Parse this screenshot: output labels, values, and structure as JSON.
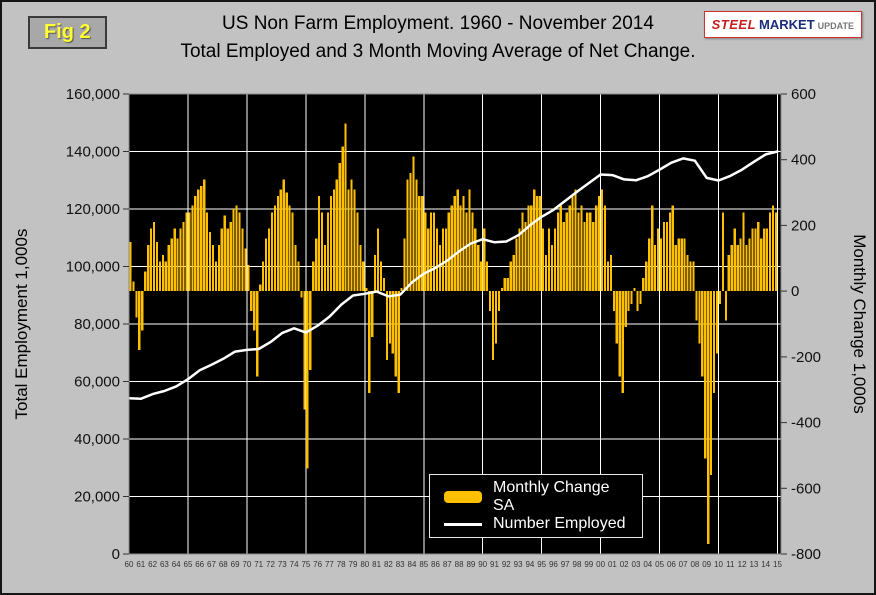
{
  "figure": {
    "tag": "Fig 2"
  },
  "logo": {
    "steel": "STEEL",
    "market": "MARKET",
    "update": "UPDATE"
  },
  "title": {
    "line1": "US Non Farm Employment. 1960 - November 2014",
    "line2": "Total Employed and 3 Month Moving Average of Net Change."
  },
  "chart_data": {
    "type": "combo-bar-line",
    "title": "US Non Farm Employment. 1960 - November 2014",
    "subtitle": "Total Employed and 3 Month Moving Average of Net Change.",
    "plot_bg": "#000000",
    "grid_color": "#ffffff",
    "legend_position": "inside-bottom-center",
    "left_axis": {
      "label": "Total Employment 1,000s",
      "min": 0,
      "max": 160000,
      "step": 20000,
      "ticks": [
        "160,000",
        "140,000",
        "120,000",
        "100,000",
        "80,000",
        "60,000",
        "40,000",
        "20,000",
        "0"
      ]
    },
    "right_axis": {
      "label": "Monthly Change 1,000s",
      "min": -800,
      "max": 600,
      "step": 200,
      "ticks": [
        "600",
        "400",
        "200",
        "0",
        "-200",
        "-400",
        "-600",
        "-800"
      ]
    },
    "x_axis": {
      "start_year": 1960,
      "end_year": 2015,
      "labels": [
        "60",
        "61",
        "62",
        "63",
        "64",
        "65",
        "66",
        "67",
        "68",
        "69",
        "70",
        "71",
        "72",
        "73",
        "74",
        "75",
        "76",
        "77",
        "78",
        "79",
        "80",
        "81",
        "82",
        "83",
        "84",
        "85",
        "86",
        "87",
        "88",
        "89",
        "90",
        "91",
        "92",
        "93",
        "94",
        "95",
        "96",
        "97",
        "98",
        "99",
        "00",
        "01",
        "02",
        "03",
        "04",
        "05",
        "06",
        "07",
        "08",
        "09",
        "10",
        "11",
        "12",
        "13",
        "14",
        "15"
      ]
    },
    "legend": {
      "bar_label": "Monthly Change SA",
      "line_label": "Number Employed"
    },
    "series": [
      {
        "name": "Monthly Change SA",
        "type": "bar",
        "axis": "right",
        "color": "#ffc000",
        "start_year": 1960,
        "points_per_year": 4,
        "values": [
          150,
          30,
          -80,
          -180,
          -120,
          60,
          140,
          190,
          210,
          150,
          90,
          110,
          90,
          140,
          160,
          190,
          160,
          190,
          210,
          240,
          240,
          260,
          290,
          310,
          320,
          340,
          240,
          180,
          140,
          90,
          140,
          190,
          230,
          190,
          210,
          250,
          260,
          240,
          190,
          130,
          80,
          -60,
          -120,
          -260,
          20,
          90,
          160,
          190,
          240,
          260,
          290,
          310,
          340,
          300,
          260,
          240,
          140,
          90,
          -20,
          -360,
          -540,
          -240,
          90,
          160,
          290,
          240,
          140,
          240,
          290,
          310,
          340,
          390,
          440,
          510,
          310,
          340,
          310,
          240,
          140,
          90,
          10,
          -310,
          -140,
          110,
          190,
          90,
          40,
          -210,
          -160,
          -190,
          -260,
          -310,
          10,
          160,
          340,
          360,
          410,
          340,
          290,
          290,
          240,
          190,
          240,
          240,
          190,
          140,
          190,
          190,
          240,
          260,
          290,
          310,
          260,
          290,
          240,
          310,
          240,
          190,
          140,
          90,
          190,
          90,
          -60,
          -210,
          -160,
          -60,
          10,
          40,
          40,
          90,
          110,
          160,
          190,
          240,
          210,
          260,
          260,
          310,
          290,
          290,
          190,
          110,
          190,
          140,
          190,
          240,
          260,
          210,
          240,
          260,
          290,
          310,
          240,
          260,
          210,
          240,
          240,
          210,
          260,
          290,
          310,
          260,
          90,
          110,
          -60,
          -160,
          -260,
          -310,
          -110,
          -60,
          -40,
          10,
          -60,
          -40,
          40,
          90,
          160,
          260,
          140,
          190,
          160,
          210,
          210,
          240,
          260,
          140,
          160,
          160,
          160,
          110,
          90,
          90,
          -90,
          -160,
          -260,
          -510,
          -770,
          -560,
          -310,
          -190,
          -40,
          240,
          -90,
          110,
          140,
          190,
          140,
          160,
          240,
          140,
          160,
          190,
          190,
          210,
          160,
          190,
          190,
          240,
          260,
          240
        ]
      },
      {
        "name": "Number Employed",
        "type": "line",
        "axis": "left",
        "color": "#ffffff",
        "start_year": 1960,
        "points_per_year": 1,
        "values": [
          54200,
          54000,
          55600,
          56700,
          58300,
          60800,
          63900,
          65800,
          67900,
          70400,
          71000,
          71300,
          73700,
          76900,
          78500,
          77000,
          79400,
          82500,
          86700,
          89900,
          90500,
          91300,
          89600,
          90200,
          94500,
          97500,
          99500,
          102100,
          105300,
          108000,
          109500,
          108400,
          108700,
          110800,
          114300,
          117300,
          119700,
          122800,
          126000,
          129000,
          132000,
          131800,
          130300,
          130000,
          131400,
          133700,
          136100,
          137600,
          136800,
          130800,
          129900,
          131500,
          133700,
          136400,
          139000,
          140000
        ]
      }
    ]
  }
}
